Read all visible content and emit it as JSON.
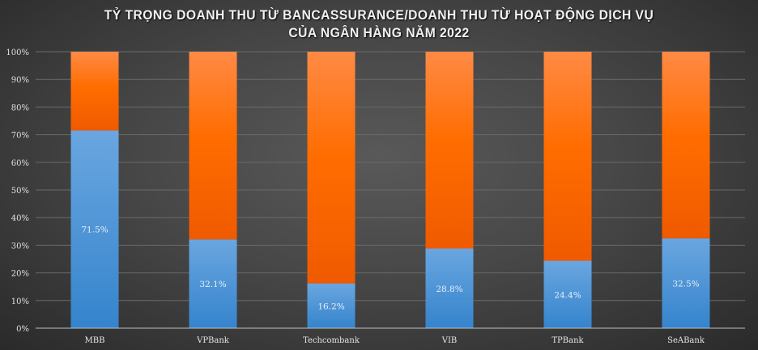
{
  "chart_data": {
    "type": "bar",
    "stacked": true,
    "percent_stacked": true,
    "title_lines": [
      "TỶ TRỌNG DOANH THU TỪ BANCASSURANCE/DOANH THU TỪ HOẠT ĐỘNG DỊCH VỤ",
      "CỦA NGÂN HÀNG NĂM 2022"
    ],
    "categories": [
      "MBB",
      "VPBank",
      "Techcombank",
      "VIB",
      "TPBank",
      "SeABank"
    ],
    "series": [
      {
        "values": [
          71.5,
          32.1,
          16.2,
          28.8,
          24.4,
          32.5
        ],
        "labels": [
          "71.5%",
          "32.1%",
          "16.2%",
          "28.8%",
          "24.4%",
          "32.5%"
        ],
        "color": "#4a90d9"
      },
      {
        "values": [
          28.5,
          67.9,
          83.8,
          71.2,
          75.6,
          67.5
        ],
        "color": "#ff6a00"
      }
    ],
    "yticks": [
      "0%",
      "10%",
      "20%",
      "30%",
      "40%",
      "50%",
      "60%",
      "70%",
      "80%",
      "90%",
      "100%"
    ],
    "ylim": [
      0,
      100
    ],
    "grid": true,
    "legend": "none"
  }
}
